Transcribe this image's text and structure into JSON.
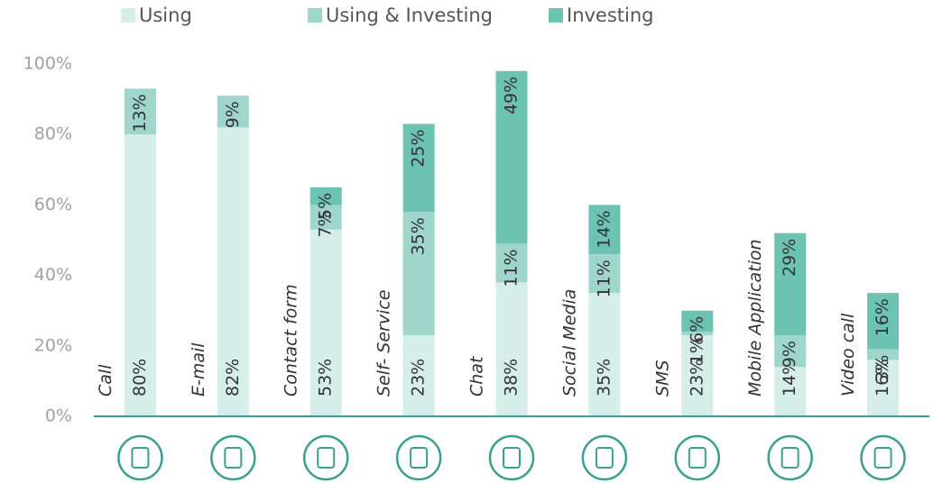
{
  "chart_data": {
    "type": "stacked_bar",
    "categories": [
      "Call",
      "E-mail",
      "Contact form",
      "Self- Service",
      "Chat",
      "Social Media",
      "SMS",
      "Mobile Application",
      "Video call"
    ],
    "series": [
      {
        "name": "Using",
        "color": "#d6eeea",
        "values": [
          80,
          82,
          53,
          23,
          38,
          35,
          23,
          14,
          16
        ],
        "value_labels": [
          "80%",
          "82%",
          "53%",
          "23%",
          "38%",
          "35%",
          "23%",
          "14%",
          "16%"
        ]
      },
      {
        "name": "Using & Investing",
        "color": "#9fd6cc",
        "values": [
          13,
          9,
          7,
          35,
          11,
          11,
          1,
          9,
          3
        ],
        "value_labels": [
          "13%",
          "9%",
          "7%",
          "35%",
          "11%",
          "11%",
          "1%",
          "9%",
          "3%"
        ]
      },
      {
        "name": "Investing",
        "color": "#6cc3b2",
        "values": [
          null,
          null,
          5,
          25,
          49,
          14,
          6,
          29,
          16
        ],
        "value_labels": [
          null,
          null,
          "5%",
          "25%",
          "49%",
          "14%",
          "6%",
          "29%",
          "16%"
        ]
      }
    ],
    "ylim": [
      0,
      100
    ],
    "yticks": [
      {
        "value": 0,
        "label": "0%"
      },
      {
        "value": 20,
        "label": "20%"
      },
      {
        "value": 40,
        "label": "40%"
      },
      {
        "value": 60,
        "label": "60%"
      },
      {
        "value": 80,
        "label": "80%"
      },
      {
        "value": 100,
        "label": "100%"
      }
    ],
    "legend": "top"
  }
}
